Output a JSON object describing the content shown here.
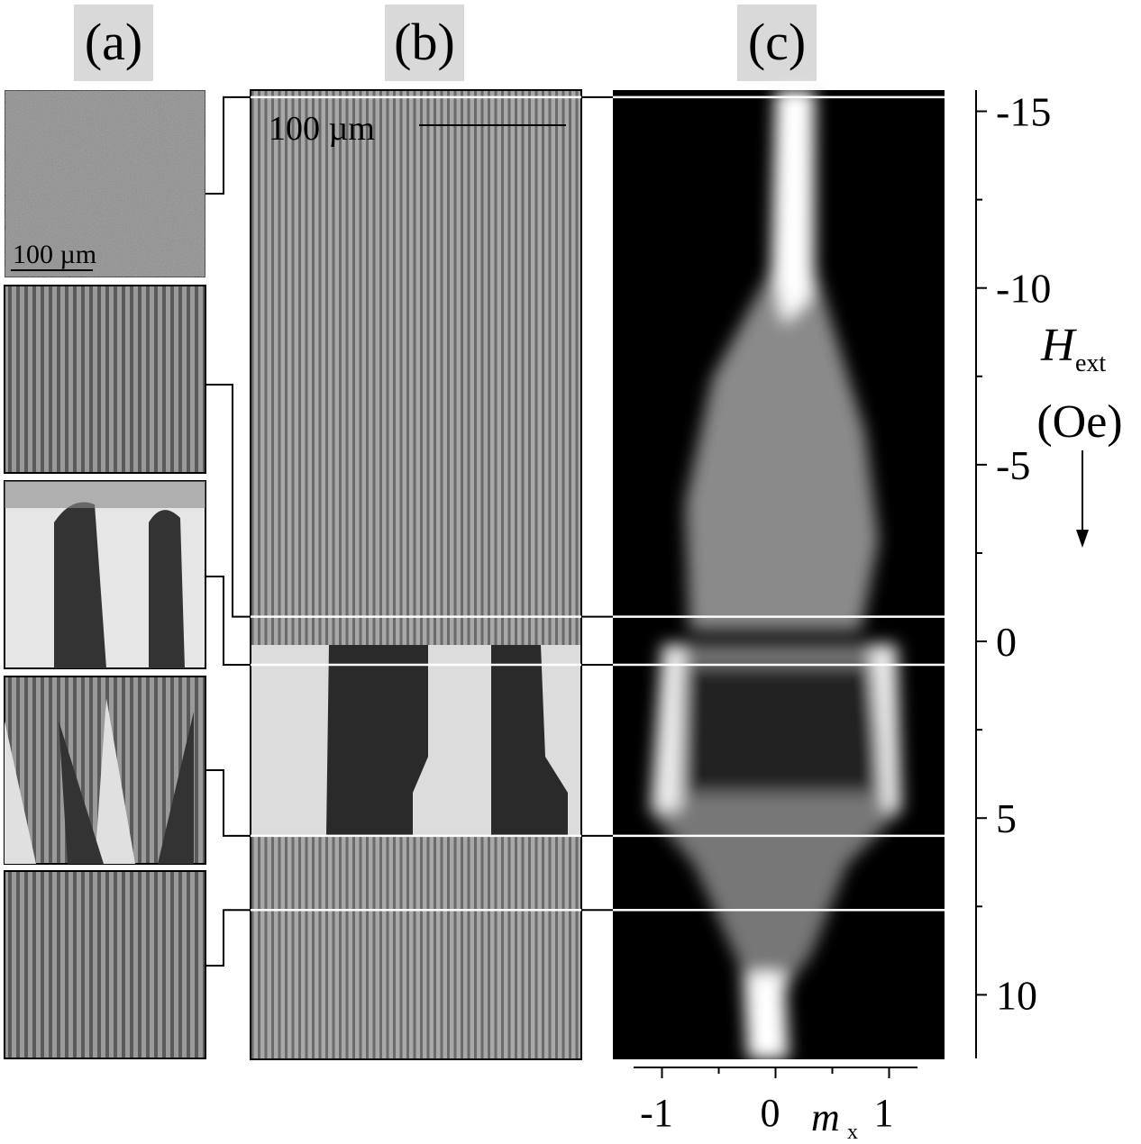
{
  "panels": [
    {
      "label": "(a)"
    },
    {
      "label": "(b)"
    },
    {
      "label": "(c)"
    }
  ],
  "scale_bars": [
    {
      "panel": "(a)",
      "label": "100 µm"
    },
    {
      "panel": "(b)",
      "label": "100 µm"
    }
  ],
  "h_axis": {
    "label": "H",
    "label_sub": "ext",
    "unit": "(Oe)",
    "lim": [
      -15.6,
      11.8
    ],
    "ticks": [
      -15,
      -10,
      -5,
      0,
      5,
      10
    ],
    "minor_ticks": [
      -12.5,
      -7.5,
      -2.5,
      2.5,
      7.5
    ]
  },
  "mx_axis": {
    "label": "m",
    "label_sub": "x",
    "lim": [
      -1.25,
      1.25
    ],
    "ticks": [
      -1,
      0,
      1
    ],
    "minor_ticks": [
      -0.5,
      0.5
    ]
  },
  "field_lines": [
    -15.4,
    -0.7,
    0.66,
    5.5,
    7.6
  ]
}
